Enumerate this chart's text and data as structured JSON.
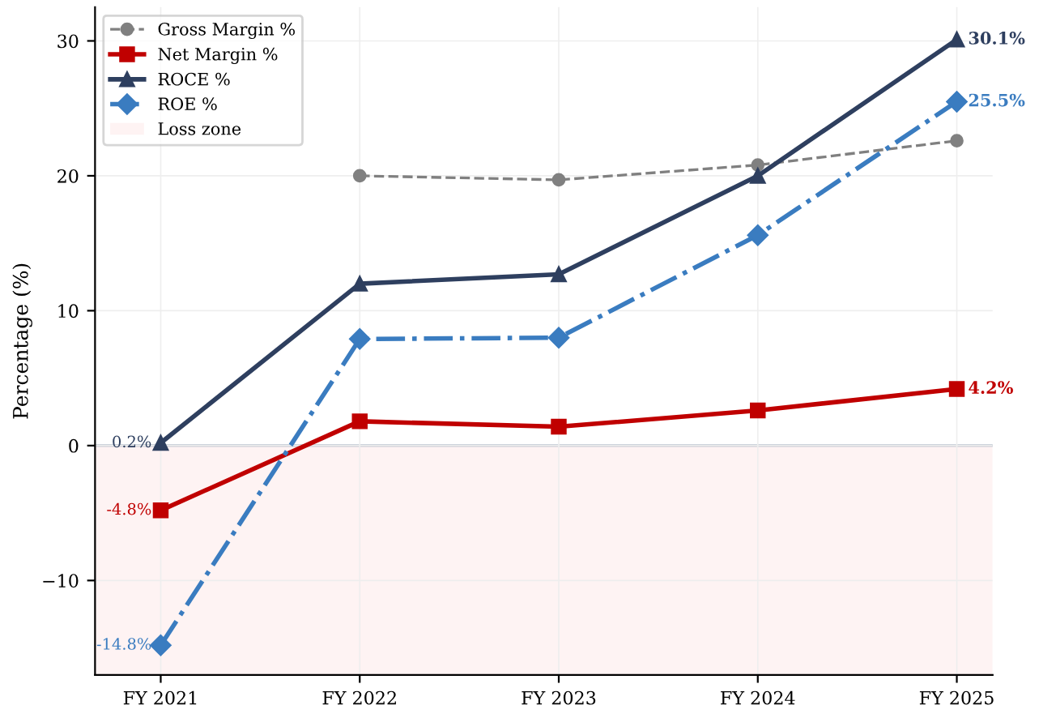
{
  "chart_data": {
    "type": "line",
    "ylabel": "Percentage (%)",
    "categories": [
      "FY 2021",
      "FY 2022",
      "FY 2023",
      "FY 2024",
      "FY 2025"
    ],
    "series": [
      {
        "name": "Gross Margin %",
        "color": "#808080",
        "values": [
          null,
          20.0,
          19.7,
          20.8,
          22.6
        ],
        "marker": "circle",
        "line_style": "dashed",
        "value_labels": [
          null,
          null,
          null,
          null,
          null
        ]
      },
      {
        "name": "Net Margin %",
        "color": "#c00000",
        "values": [
          -4.8,
          1.8,
          1.4,
          2.6,
          4.2
        ],
        "marker": "square",
        "line_style": "solid",
        "value_labels": [
          "-4.8%",
          null,
          null,
          null,
          "4.2%"
        ]
      },
      {
        "name": "ROCE %",
        "color": "#2e3f5f",
        "values": [
          0.2,
          12.0,
          12.7,
          20.0,
          30.1
        ],
        "marker": "triangle",
        "line_style": "solid",
        "value_labels": [
          "0.2%",
          null,
          null,
          null,
          "30.1%"
        ]
      },
      {
        "name": "ROE %",
        "color": "#3a7cc0",
        "values": [
          -14.8,
          7.9,
          8.0,
          15.6,
          25.5
        ],
        "marker": "diamond",
        "line_style": "dashdot",
        "value_labels": [
          "-14.8%",
          null,
          null,
          null,
          "25.5%"
        ]
      }
    ],
    "ylim": [
      -17,
      32.5
    ],
    "yticks": [
      {
        "value": -10,
        "label": "−10"
      },
      0,
      10,
      20,
      30
    ],
    "ref_lines": [
      {
        "axis": "y",
        "value": 0,
        "color": "#9aa5b8"
      }
    ],
    "bands": [
      {
        "axis": "y",
        "from": -17,
        "to": 0,
        "label": "Loss zone",
        "color": "#fde8e8"
      }
    ],
    "grid": true,
    "legend": "top left"
  }
}
